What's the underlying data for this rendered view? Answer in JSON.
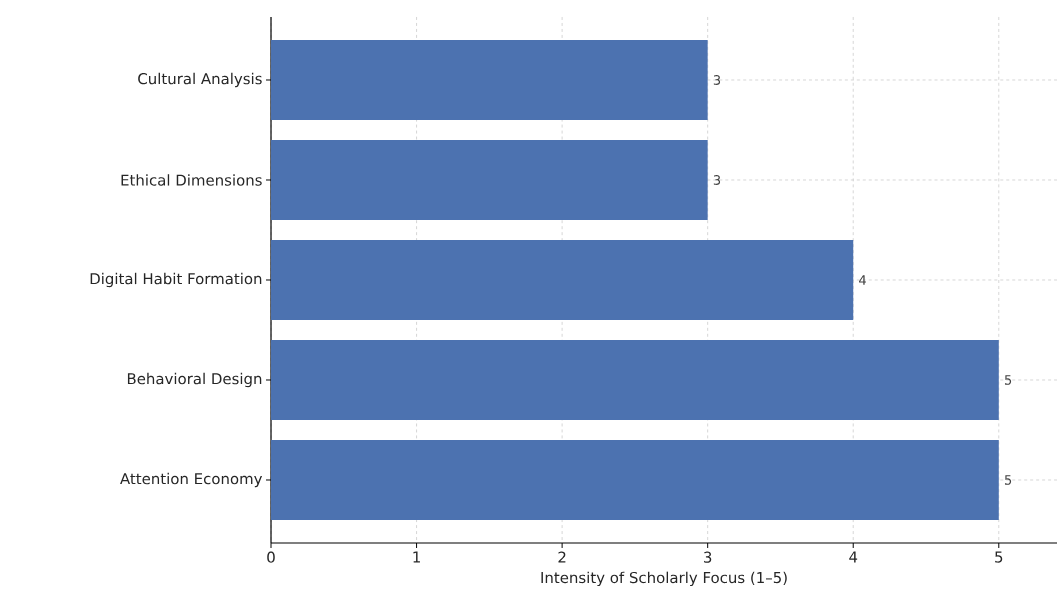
{
  "chart_data": {
    "type": "bar",
    "orientation": "horizontal",
    "xlabel": "Intensity of Scholarly Focus (1–5)",
    "categories": [
      "Cultural Analysis",
      "Ethical Dimensions",
      "Digital Habit Formation",
      "Behavioral Design",
      "Attention Economy"
    ],
    "values": [
      3,
      3,
      4,
      5,
      5
    ],
    "color": "#4c72b0",
    "xlim": [
      0,
      5.4
    ],
    "xticks": [
      0,
      1,
      2,
      3,
      4,
      5
    ],
    "grid": true,
    "data_labels": true
  }
}
